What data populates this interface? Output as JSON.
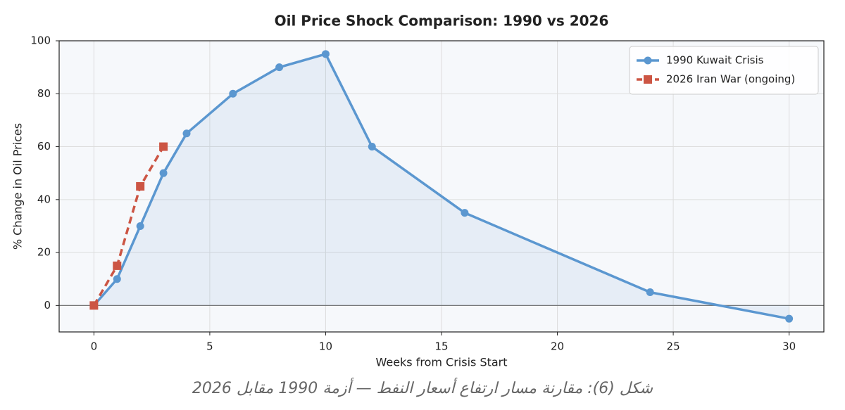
{
  "chart_data": {
    "type": "line",
    "title": "Oil Price Shock Comparison: 1990 vs 2026",
    "x_label": "Weeks from Crisis Start",
    "y_label": "% Change in Oil Prices",
    "series": [
      {
        "name": "1990 Kuwait Crisis",
        "color": "#5b97d0",
        "marker": "circle",
        "dash": false,
        "fill": true,
        "x": [
          0,
          1,
          2,
          3,
          4,
          6,
          8,
          10,
          12,
          16,
          24,
          30
        ],
        "values": [
          0,
          10,
          30,
          50,
          65,
          80,
          90,
          95,
          60,
          35,
          5,
          -5
        ]
      },
      {
        "name": "2026 Iran War (ongoing)",
        "color": "#cc5544",
        "marker": "square",
        "dash": true,
        "fill": false,
        "x": [
          0,
          1,
          2,
          3
        ],
        "values": [
          0,
          15,
          45,
          60
        ]
      }
    ],
    "xlim": [
      -1.5,
      31.5
    ],
    "ylim": [
      -10,
      100
    ],
    "xticks": [
      0,
      5,
      10,
      15,
      20,
      25,
      30
    ],
    "yticks": [
      0,
      20,
      40,
      60,
      80,
      100
    ],
    "hline": 0,
    "grid": true,
    "legend": "upper right",
    "caption": "شكل (6): مقارنة مسار ارتفاع أسعار النفط — أزمة 1990 مقابل 2026"
  }
}
